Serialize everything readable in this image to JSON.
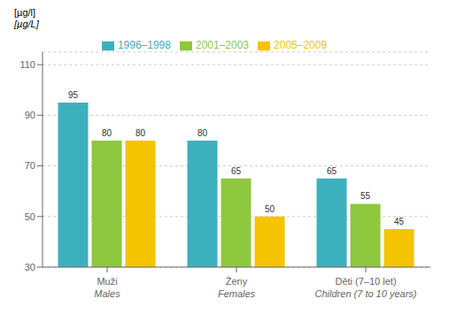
{
  "chart_data": {
    "type": "bar",
    "ylabel": "[µg/l]\n[µg/L]",
    "categories": [
      "Muži\nMales",
      "Ženy\nFemales",
      "Děti (7–10 let)\nChildren (7 to 10 years)"
    ],
    "series": [
      {
        "name": "1996–1998",
        "color": "#3db0be",
        "values": [
          95,
          80,
          65
        ]
      },
      {
        "name": "2001–2003",
        "color": "#8dc83e",
        "values": [
          80,
          65,
          55
        ]
      },
      {
        "name": "2005–2009",
        "color": "#f5c400",
        "values": [
          80,
          50,
          45
        ]
      }
    ],
    "ylim": [
      30,
      115
    ],
    "yticks": [
      30,
      50,
      70,
      90,
      110
    ],
    "grid": true,
    "legend": "top",
    "data_labels": true
  }
}
